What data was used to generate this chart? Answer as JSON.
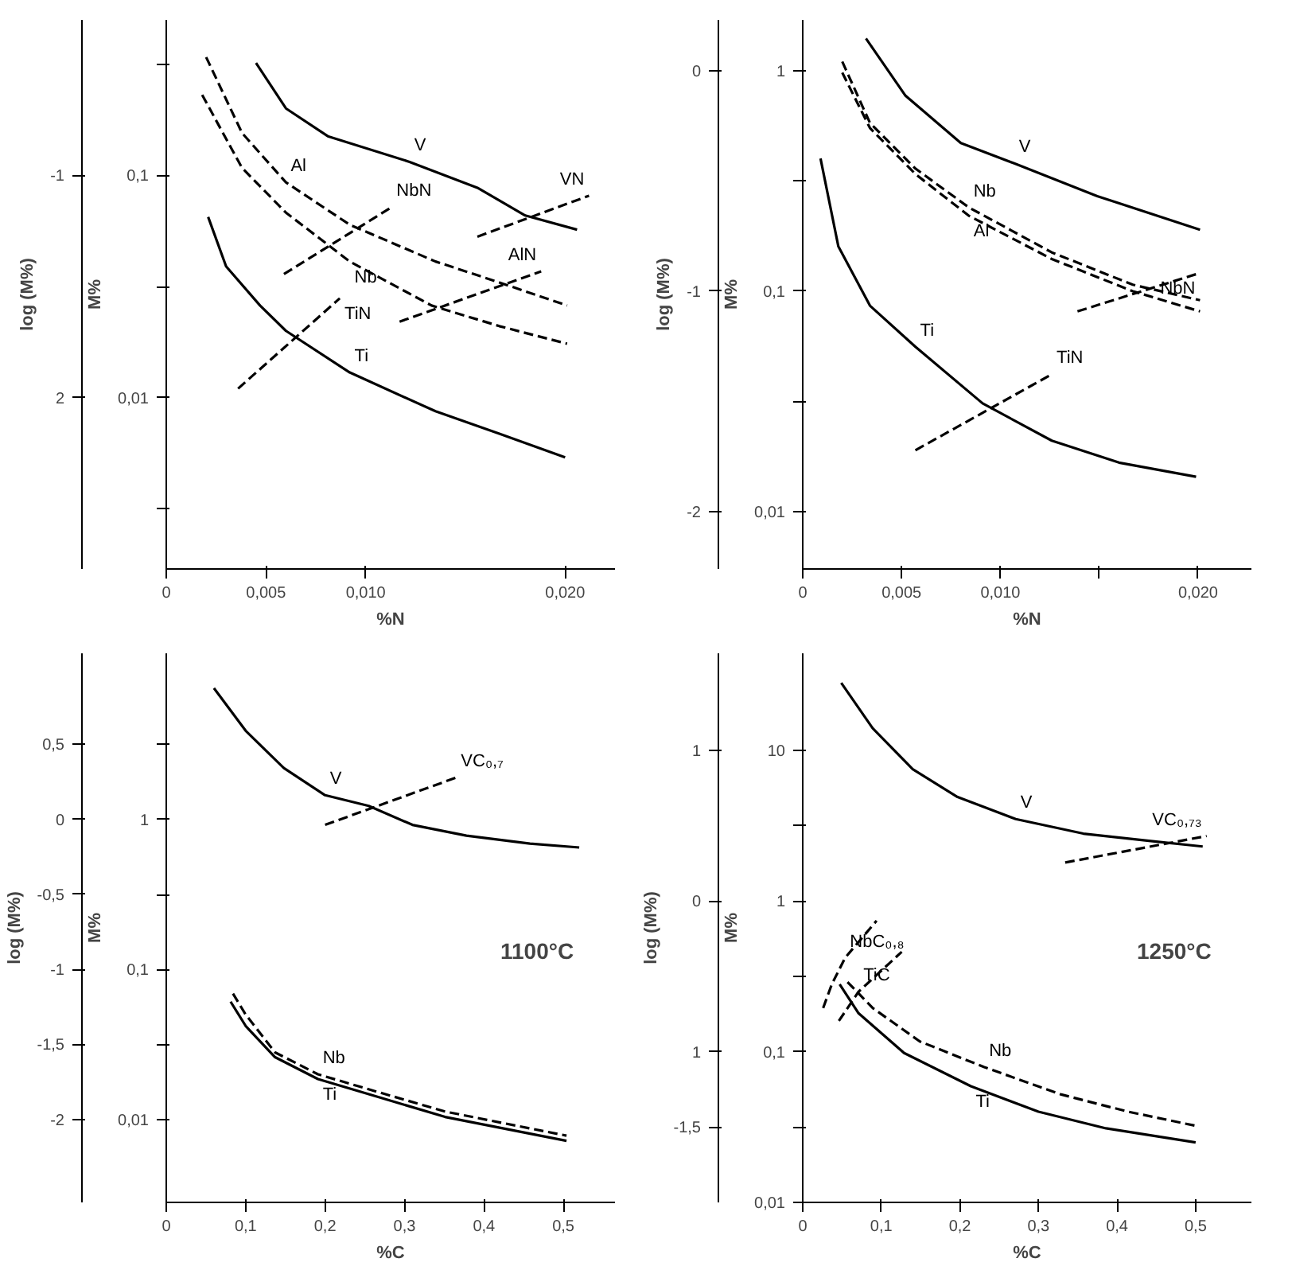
{
  "chart_data": [
    {
      "type": "line",
      "xlabel": "%N",
      "ylabel": "M%",
      "y2label": "log (M%)",
      "log": "y",
      "xlim": [
        0,
        0.0225
      ],
      "ylim": [
        0.0017,
        0.5
      ],
      "y2lim": [
        -2.77,
        -0.301
      ],
      "xticks": [
        {
          "value": 0,
          "label": "0"
        },
        {
          "value": 0.005,
          "label": "0,005"
        },
        {
          "value": 0.01,
          "label": "0,010"
        },
        {
          "value": 0.02,
          "label": "0,020"
        }
      ],
      "yticks": [
        {
          "value": 0.316,
          "label": null
        },
        {
          "value": 0.1,
          "label": "0,1"
        },
        {
          "value": 0.0316,
          "label": null
        },
        {
          "value": 0.01,
          "label": "0,01"
        },
        {
          "value": 0.00316,
          "label": null
        }
      ],
      "y2ticks": [
        {
          "value": -1,
          "label": "-1"
        },
        {
          "value": -2,
          "label": "2"
        }
      ],
      "series": [
        {
          "name": "V",
          "color": "#000000",
          "line_style": "solid",
          "x": [
            0.0045,
            0.006,
            0.0081,
            0.0122,
            0.0156,
            0.018,
            0.0206
          ],
          "values": [
            0.32,
            0.2,
            0.15,
            0.115,
            0.088,
            0.066,
            0.057
          ]
        },
        {
          "name": "Al",
          "color": "#000000",
          "line_style": "dashed",
          "x": [
            0.002,
            0.0038,
            0.006,
            0.0092,
            0.0135,
            0.0167,
            0.0201
          ],
          "values": [
            0.34,
            0.155,
            0.093,
            0.06,
            0.041,
            0.033,
            0.026
          ]
        },
        {
          "name": "Nb",
          "color": "#000000",
          "line_style": "dashed",
          "x": [
            0.0018,
            0.0038,
            0.006,
            0.0092,
            0.0133,
            0.0167,
            0.0201
          ],
          "values": [
            0.23,
            0.108,
            0.068,
            0.041,
            0.026,
            0.021,
            0.0175
          ]
        },
        {
          "name": "Ti",
          "color": "#000000",
          "line_style": "solid",
          "x": [
            0.0021,
            0.003,
            0.0047,
            0.006,
            0.0092,
            0.0135,
            0.0167,
            0.02
          ],
          "values": [
            0.065,
            0.039,
            0.026,
            0.02,
            0.013,
            0.0087,
            0.0069,
            0.0054
          ]
        },
        {
          "name": "NbN",
          "color": "#000000",
          "line_style": "dashed",
          "x": [
            0.0059,
            0.0113
          ],
          "values": [
            0.036,
            0.072
          ]
        },
        {
          "name": "TiN",
          "color": "#000000",
          "line_style": "dashed",
          "x": [
            0.0036,
            0.0087
          ],
          "values": [
            0.011,
            0.028
          ]
        },
        {
          "name": "AlN",
          "color": "#000000",
          "line_style": "dashed",
          "x": [
            0.0117,
            0.0188
          ],
          "values": [
            0.022,
            0.037
          ]
        },
        {
          "name": "VN",
          "color": "#000000",
          "line_style": "dashed",
          "x": [
            0.0156,
            0.0212
          ],
          "values": [
            0.053,
            0.081
          ]
        }
      ]
    },
    {
      "type": "line",
      "xlabel": "%N",
      "ylabel": "M%",
      "y2label": "log (M%)",
      "log": "y",
      "xlim": [
        0,
        0.0227
      ],
      "ylim": [
        0.0055,
        1.7
      ],
      "y2lim": [
        -2.26,
        0.23
      ],
      "xticks": [
        {
          "value": 0,
          "label": "0"
        },
        {
          "value": 0.005,
          "label": "0,005"
        },
        {
          "value": 0.01,
          "label": "0,010"
        },
        {
          "value": 0.015,
          "label": null
        },
        {
          "value": 0.02,
          "label": "0,020"
        }
      ],
      "yticks": [
        {
          "value": 1,
          "label": "1"
        },
        {
          "value": 0.316,
          "label": null
        },
        {
          "value": 0.1,
          "label": "0,1"
        },
        {
          "value": 0.0316,
          "label": null
        },
        {
          "value": 0.01,
          "label": "0,01"
        }
      ],
      "y2ticks": [
        {
          "value": 0,
          "label": "0"
        },
        {
          "value": -1,
          "label": "-1"
        },
        {
          "value": -2,
          "label": "-2"
        }
      ],
      "series": [
        {
          "name": "V",
          "color": "#000000",
          "line_style": "solid",
          "x": [
            0.0032,
            0.0052,
            0.008,
            0.0107,
            0.0149,
            0.0201
          ],
          "values": [
            1.4,
            0.77,
            0.47,
            0.38,
            0.27,
            0.19
          ]
        },
        {
          "name": "Nb",
          "color": "#000000",
          "line_style": "dashed",
          "x": [
            0.002,
            0.0034,
            0.0057,
            0.0084,
            0.0126,
            0.0167,
            0.0201
          ],
          "values": [
            1.1,
            0.58,
            0.36,
            0.24,
            0.15,
            0.107,
            0.091
          ]
        },
        {
          "name": "Al",
          "color": "#000000",
          "line_style": "dashed",
          "x": [
            0.002,
            0.0034,
            0.0057,
            0.0084,
            0.0126,
            0.0167,
            0.0201
          ],
          "values": [
            0.98,
            0.55,
            0.34,
            0.22,
            0.14,
            0.1,
            0.081
          ]
        },
        {
          "name": "Ti",
          "color": "#000000",
          "line_style": "solid",
          "x": [
            0.0009,
            0.0018,
            0.0034,
            0.0057,
            0.0091,
            0.0126,
            0.016,
            0.0199
          ],
          "values": [
            0.4,
            0.16,
            0.086,
            0.056,
            0.031,
            0.021,
            0.0167,
            0.0144
          ]
        },
        {
          "name": "NbN",
          "color": "#000000",
          "line_style": "dashed",
          "x": [
            0.0139,
            0.0201
          ],
          "values": [
            0.081,
            0.121
          ]
        },
        {
          "name": "TiN",
          "color": "#000000",
          "line_style": "dashed",
          "x": [
            0.0057,
            0.0126
          ],
          "values": [
            0.019,
            0.042
          ]
        }
      ]
    },
    {
      "type": "line",
      "xlabel": "%C",
      "ylabel": "M%",
      "y2label": "log (M%)",
      "log": "y",
      "xlim": [
        0,
        0.565
      ],
      "ylim": [
        0.0028,
        12.8
      ],
      "y2lim": [
        -2.553,
        1.107
      ],
      "annotations": [
        "1100°C"
      ],
      "xticks": [
        {
          "value": 0,
          "label": "0"
        },
        {
          "value": 0.1,
          "label": "0,1"
        },
        {
          "value": 0.2,
          "label": "0,2"
        },
        {
          "value": 0.3,
          "label": "0,3"
        },
        {
          "value": 0.4,
          "label": "0,4"
        },
        {
          "value": 0.5,
          "label": "0,5"
        }
      ],
      "yticks": [
        {
          "value": 3.16,
          "label": null
        },
        {
          "value": 1,
          "label": "1"
        },
        {
          "value": 0.316,
          "label": null
        },
        {
          "value": 0.1,
          "label": "0,1"
        },
        {
          "value": 0.0316,
          "label": null
        },
        {
          "value": 0.01,
          "label": "0,01"
        }
      ],
      "y2ticks": [
        {
          "value": 0.5,
          "label": "0,5"
        },
        {
          "value": 0,
          "label": "0"
        },
        {
          "value": -0.5,
          "label": "-0,5"
        },
        {
          "value": -1,
          "label": "-1"
        },
        {
          "value": -1.5,
          "label": "-1,5"
        },
        {
          "value": -2,
          "label": "-2"
        }
      ],
      "series": [
        {
          "name": "V",
          "color": "#000000",
          "line_style": "solid",
          "x": [
            0.06,
            0.1,
            0.148,
            0.2,
            0.255,
            0.31,
            0.378,
            0.458,
            0.52
          ],
          "values": [
            7.5,
            3.9,
            2.2,
            1.45,
            1.23,
            0.92,
            0.78,
            0.69,
            0.65
          ]
        },
        {
          "name": "VC₀,₇",
          "color": "#000000",
          "line_style": "dashed",
          "x": [
            0.2,
            0.365
          ],
          "values": [
            0.92,
            1.9
          ]
        },
        {
          "name": "Nb",
          "color": "#000000",
          "line_style": "dashed",
          "x": [
            0.084,
            0.1,
            0.137,
            0.191,
            0.271,
            0.351,
            0.504
          ],
          "values": [
            0.069,
            0.05,
            0.028,
            0.02,
            0.015,
            0.0113,
            0.0078
          ]
        },
        {
          "name": "Ti",
          "color": "#000000",
          "line_style": "solid",
          "x": [
            0.081,
            0.1,
            0.137,
            0.191,
            0.271,
            0.351,
            0.504
          ],
          "values": [
            0.061,
            0.042,
            0.026,
            0.0186,
            0.0139,
            0.0104,
            0.0072
          ]
        }
      ]
    },
    {
      "type": "line",
      "xlabel": "%C",
      "ylabel": "M%",
      "y2label": "log (M%)",
      "log": "y",
      "xlim": [
        0,
        0.571
      ],
      "ylim": [
        0.01,
        44
      ],
      "y2lim": [
        -2,
        1.643
      ],
      "annotations": [
        "1250°C"
      ],
      "xticks": [
        {
          "value": 0,
          "label": "0"
        },
        {
          "value": 0.1,
          "label": "0,1"
        },
        {
          "value": 0.2,
          "label": "0,2"
        },
        {
          "value": 0.3,
          "label": "0,3"
        },
        {
          "value": 0.4,
          "label": "0,4"
        },
        {
          "value": 0.5,
          "label": "0,5"
        }
      ],
      "yticks": [
        {
          "value": 10,
          "label": "10"
        },
        {
          "value": 3.16,
          "label": null
        },
        {
          "value": 1,
          "label": "1"
        },
        {
          "value": 0.316,
          "label": null
        },
        {
          "value": 0.1,
          "label": "0,1"
        },
        {
          "value": 0.0316,
          "label": null
        },
        {
          "value": 0.01,
          "label": "0,01"
        }
      ],
      "y2ticks": [
        {
          "value": 1,
          "label": "1"
        },
        {
          "value": 0,
          "label": "0"
        },
        {
          "value": -1,
          "label": "1"
        },
        {
          "value": -1.5,
          "label": "-1,5"
        }
      ],
      "series": [
        {
          "name": "V",
          "color": "#000000",
          "line_style": "solid",
          "x": [
            0.049,
            0.089,
            0.14,
            0.197,
            0.271,
            0.357,
            0.443,
            0.509
          ],
          "values": [
            28,
            14,
            7.5,
            4.9,
            3.5,
            2.8,
            2.5,
            2.3
          ]
        },
        {
          "name": "VC₀,₇₃",
          "color": "#000000",
          "line_style": "dashed",
          "x": [
            0.334,
            0.514
          ],
          "values": [
            1.8,
            2.7
          ]
        },
        {
          "name": "Nb",
          "color": "#000000",
          "line_style": "dashed",
          "x": [
            0.057,
            0.089,
            0.149,
            0.231,
            0.329,
            0.414,
            0.503
          ],
          "values": [
            0.29,
            0.195,
            0.117,
            0.079,
            0.052,
            0.04,
            0.032
          ]
        },
        {
          "name": "Ti",
          "color": "#000000",
          "line_style": "solid",
          "x": [
            0.047,
            0.071,
            0.129,
            0.214,
            0.3,
            0.386,
            0.5
          ],
          "values": [
            0.28,
            0.18,
            0.098,
            0.059,
            0.04,
            0.031,
            0.025
          ]
        },
        {
          "name": "NbC₀,₈",
          "color": "#000000",
          "line_style": "dashed",
          "x": [
            0.026,
            0.037,
            0.054,
            0.094
          ],
          "values": [
            0.195,
            0.28,
            0.42,
            0.74
          ]
        },
        {
          "name": "TiC",
          "color": "#000000",
          "line_style": "dashed",
          "x": [
            0.046,
            0.071,
            0.126
          ],
          "values": [
            0.16,
            0.25,
            0.46
          ]
        }
      ]
    }
  ]
}
